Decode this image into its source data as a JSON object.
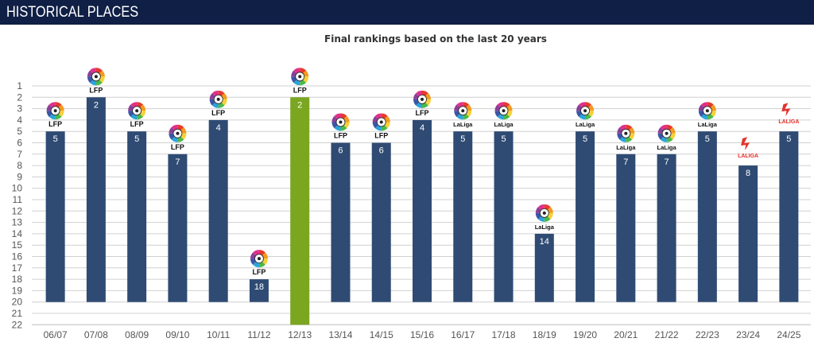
{
  "header": {
    "title": "HISTORICAL PLACES"
  },
  "chart_data": {
    "type": "bar",
    "title": "Final rankings based on the last 20 years",
    "xlabel": "",
    "ylabel": "",
    "y_axis_inverted": true,
    "ylim": [
      1,
      22
    ],
    "yticks": [
      "1",
      "2",
      "3",
      "4",
      "5",
      "6",
      "7",
      "8",
      "9",
      "10",
      "11",
      "12",
      "13",
      "14",
      "15",
      "16",
      "17",
      "18",
      "19",
      "20",
      "21",
      "22"
    ],
    "categories": [
      "06/07",
      "07/08",
      "08/09",
      "09/10",
      "10/11",
      "11/12",
      "12/13",
      "13/14",
      "14/15",
      "15/16",
      "16/17",
      "17/18",
      "18/19",
      "19/20",
      "20/21",
      "21/22",
      "22/23",
      "23/24",
      "24/25"
    ],
    "values": [
      5,
      2,
      5,
      7,
      4,
      18,
      2,
      6,
      6,
      4,
      5,
      5,
      14,
      5,
      7,
      7,
      5,
      8,
      5
    ],
    "value_labels": [
      "5",
      "2",
      "5",
      "7",
      "4",
      "18",
      "2",
      "6",
      "6",
      "4",
      "5",
      "5",
      "14",
      "5",
      "7",
      "7",
      "5",
      "8",
      "5"
    ],
    "logos": [
      "LFP",
      "LFP",
      "LFP",
      "LFP",
      "LFP",
      "LFP",
      "LFP",
      "LFP",
      "LFP",
      "LFP",
      "LaLiga",
      "LaLiga",
      "LaLiga",
      "LaLiga",
      "LaLiga",
      "LaLiga",
      "LaLiga",
      "LALIGA",
      "LALIGA"
    ],
    "highlight_index": 6,
    "colors": {
      "bar": "#2f4b73",
      "highlight": "#7aa620",
      "grid": "#d0d0d0",
      "axis_text": "#555555"
    }
  }
}
